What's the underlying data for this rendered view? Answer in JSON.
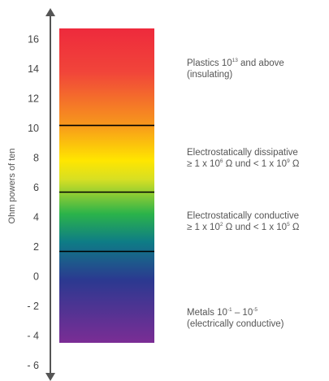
{
  "axis": {
    "title": "Ohm powers of ten",
    "ticks": [
      16,
      14,
      12,
      10,
      8,
      6,
      4,
      2,
      0,
      -2,
      -4,
      -6
    ],
    "tick_labels": [
      "16",
      "14",
      "12",
      "10",
      "8",
      "6",
      "4",
      "2",
      "0",
      "- 2",
      "- 4",
      "- 6"
    ],
    "min": -7.3,
    "max": 16.8
  },
  "thresholds": [
    10.2,
    5.7,
    1.7
  ],
  "bands": {
    "insulating": {
      "line1": [
        "Plastics 10",
        "13",
        " and above"
      ],
      "line2": "(insulating)"
    },
    "dissipative": {
      "line1": "Electrostatically dissipative",
      "line2": [
        "≥ 1 x 10",
        "6",
        " Ω und <  1 x 10",
        "9",
        "  Ω"
      ]
    },
    "conductive": {
      "line1": "Electrostatically conductive",
      "line2": [
        "≥ 1 x 10",
        "2",
        " Ω und < 1 x 10",
        "5",
        " Ω"
      ]
    },
    "metals": {
      "line1": [
        "Metals 10",
        "-1",
        " – 10",
        "-5"
      ],
      "line2": "(electrically conductive)"
    }
  },
  "colors": {
    "red": "#ee2a3c",
    "orange": "#f7941d",
    "yellow": "#fff200",
    "green": "#2bb34a",
    "teal": "#0e7c86",
    "blue": "#2b3990",
    "violet": "#7b2d95",
    "axis": "#555555",
    "threshold": "#000000"
  }
}
